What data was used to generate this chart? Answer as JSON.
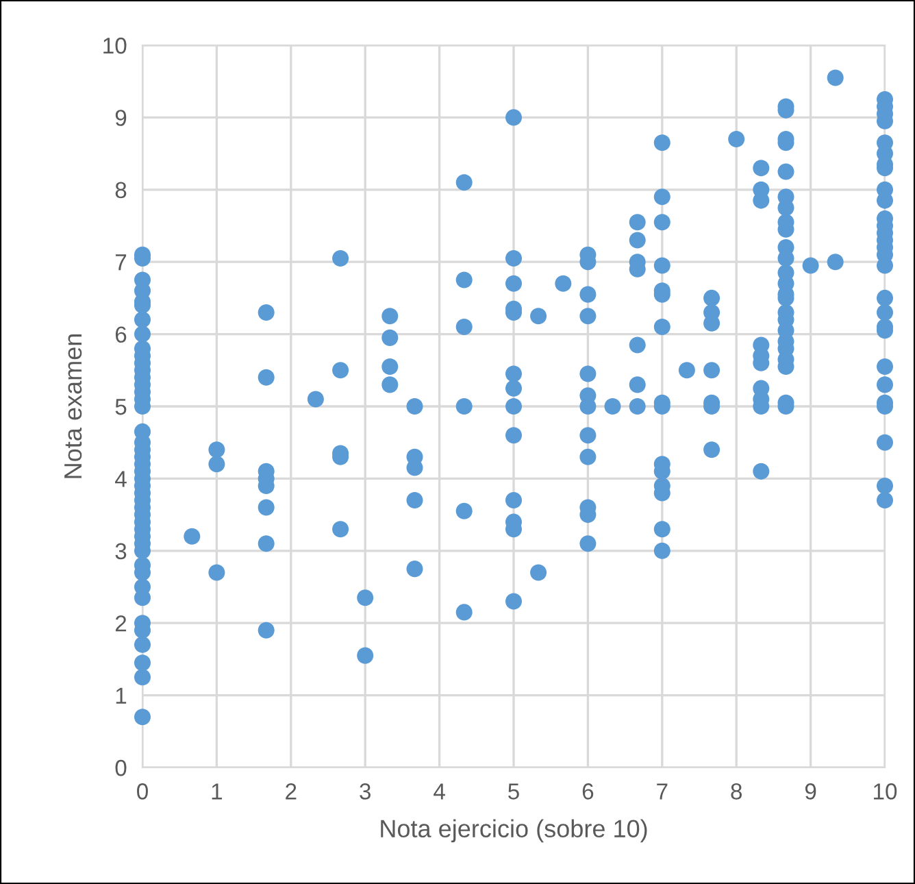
{
  "chart_data": {
    "type": "scatter",
    "xlabel": "Nota ejercicio (sobre 10)",
    "ylabel": "Nota examen",
    "xlim": [
      0,
      10
    ],
    "ylim": [
      0,
      10
    ],
    "xticks": [
      0,
      1,
      2,
      3,
      4,
      5,
      6,
      7,
      8,
      9,
      10
    ],
    "yticks": [
      0,
      1,
      2,
      3,
      4,
      5,
      6,
      7,
      8,
      9,
      10
    ],
    "grid": true,
    "marker": "circle",
    "series": [
      {
        "color": "#5b9bd5",
        "x": [
          0,
          0,
          0,
          0,
          0,
          0,
          0,
          0,
          0,
          0,
          0,
          0,
          0,
          0,
          0,
          0,
          0,
          0,
          0,
          0,
          0,
          0,
          0,
          0,
          0,
          0,
          0,
          0,
          0,
          0,
          0,
          0,
          0,
          0,
          0,
          0,
          0,
          0,
          0,
          0,
          0,
          0,
          0,
          0,
          0.667,
          1,
          1,
          1,
          1.667,
          1.667,
          1.667,
          1.667,
          1.667,
          1.667,
          1.667,
          1.667,
          2.333,
          2.667,
          2.667,
          2.667,
          2.667,
          2.667,
          3,
          3,
          3.333,
          3.333,
          3.333,
          3.333,
          3.667,
          3.667,
          3.667,
          3.667,
          3.667,
          4.333,
          4.333,
          4.333,
          4.333,
          4.333,
          4.333,
          5,
          5,
          5,
          5,
          5,
          5,
          5,
          5,
          5,
          5,
          5,
          5,
          5,
          5.333,
          5.333,
          5.667,
          6,
          6,
          6,
          6,
          6,
          6,
          6,
          6,
          6,
          6,
          6,
          6,
          6.333,
          6.667,
          6.667,
          6.667,
          6.667,
          6.667,
          6.667,
          6.667,
          7,
          7,
          7,
          7,
          7,
          7,
          7,
          7,
          7,
          7,
          7,
          7,
          7,
          7,
          7,
          7.333,
          7.667,
          7.667,
          7.667,
          7.667,
          7.667,
          7.667,
          7.667,
          8,
          8.333,
          8.333,
          8.333,
          8.333,
          8.333,
          8.333,
          8.333,
          8.333,
          8.333,
          8.333,
          8.667,
          8.667,
          8.667,
          8.667,
          8.667,
          8.667,
          8.667,
          8.667,
          8.667,
          8.667,
          8.667,
          8.667,
          8.667,
          8.667,
          8.667,
          8.667,
          8.667,
          8.667,
          8.667,
          8.667,
          8.667,
          8.667,
          8.667,
          8.667,
          9,
          9.333,
          9.333,
          10,
          10,
          10,
          10,
          10,
          10,
          10,
          10,
          10,
          10,
          10,
          10,
          10,
          10,
          10,
          10,
          10,
          10,
          10,
          10,
          10,
          10,
          10,
          10,
          10,
          10,
          10,
          10
        ],
        "values": [
          7.1,
          7.05,
          6.75,
          6.6,
          6.45,
          6.4,
          6.2,
          6.0,
          5.8,
          5.7,
          5.6,
          5.5,
          5.4,
          5.3,
          5.2,
          5.1,
          5.0,
          4.65,
          4.5,
          4.4,
          4.3,
          4.2,
          4.1,
          4.0,
          3.9,
          3.8,
          3.7,
          3.6,
          3.5,
          3.4,
          3.3,
          3.2,
          3.1,
          3.0,
          2.8,
          2.7,
          2.5,
          2.35,
          2.0,
          1.9,
          1.7,
          1.45,
          1.25,
          0.7,
          3.2,
          4.4,
          4.2,
          2.7,
          6.3,
          5.4,
          4.1,
          4.0,
          3.9,
          3.6,
          3.1,
          1.9,
          5.1,
          7.05,
          5.5,
          4.35,
          4.3,
          3.3,
          2.35,
          1.55,
          6.25,
          5.95,
          5.55,
          5.3,
          5.0,
          4.3,
          4.15,
          3.7,
          2.75,
          8.1,
          6.75,
          6.1,
          5.0,
          3.55,
          2.15,
          9.0,
          7.05,
          6.7,
          6.35,
          6.3,
          5.45,
          5.25,
          5.0,
          4.6,
          3.7,
          3.4,
          3.3,
          2.3,
          6.25,
          2.7,
          6.7,
          7.1,
          7.0,
          6.55,
          6.25,
          5.45,
          5.15,
          5.0,
          4.6,
          4.3,
          3.6,
          3.5,
          3.1,
          5.0,
          7.55,
          7.3,
          7.0,
          6.9,
          5.85,
          5.3,
          5.0,
          8.65,
          7.9,
          7.55,
          6.95,
          6.6,
          6.55,
          6.1,
          5.05,
          5.0,
          4.2,
          4.1,
          3.9,
          3.8,
          3.3,
          3.0,
          5.5,
          6.5,
          6.3,
          6.15,
          5.5,
          5.05,
          5.0,
          4.4,
          8.7,
          8.3,
          8.0,
          7.85,
          5.85,
          5.7,
          5.6,
          5.25,
          5.1,
          5.0,
          4.1,
          9.15,
          9.1,
          8.7,
          8.65,
          8.25,
          7.9,
          7.75,
          7.55,
          7.45,
          7.2,
          7.05,
          6.85,
          6.7,
          6.55,
          6.5,
          6.3,
          6.2,
          6.05,
          5.9,
          5.8,
          5.65,
          5.55,
          5.05,
          5.0,
          6.95,
          9.55,
          7.0,
          9.25,
          9.15,
          9.05,
          8.95,
          8.65,
          8.5,
          8.35,
          8.3,
          8.0,
          7.85,
          7.6,
          7.5,
          7.4,
          7.3,
          7.2,
          7.1,
          6.95,
          6.5,
          6.3,
          6.1,
          6.05,
          5.55,
          5.3,
          5.05,
          5.0,
          4.5,
          3.9,
          3.7
        ]
      }
    ]
  }
}
